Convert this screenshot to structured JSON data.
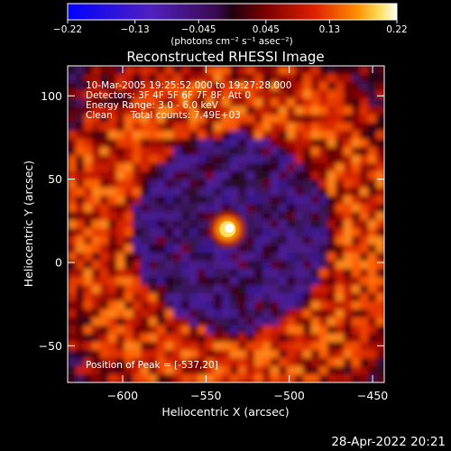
{
  "chart_data": {
    "type": "heatmap",
    "title": "Reconstructed RHESSI Image",
    "xlabel": "Heliocentric X (arcsec)",
    "ylabel": "Heliocentric Y (arcsec)",
    "xlim": [
      -633,
      -443
    ],
    "ylim": [
      -72,
      118
    ],
    "x_ticks": [
      -600,
      -550,
      -500,
      -450
    ],
    "x_tick_labels": [
      "−600",
      "−550",
      "−500",
      "−450"
    ],
    "y_ticks": [
      -50,
      0,
      50,
      100
    ],
    "y_tick_labels": [
      "−50",
      "0",
      "50",
      "100"
    ],
    "colorbar": {
      "range": [
        -0.22,
        0.22
      ],
      "ticks": [
        -0.22,
        -0.13,
        -0.045,
        0.045,
        0.13,
        0.22
      ],
      "tick_labels": [
        "−0.22",
        "−0.13",
        "−0.045",
        "0.045",
        "0.13",
        "0.22"
      ],
      "unit_label": "(photons cm⁻² s⁻¹ asec⁻²)",
      "colormap": "blue-purple-red-yellow-white"
    },
    "peak": {
      "x": -537,
      "y": 20
    },
    "info_lines": [
      "10-Mar-2005 19:25:52.000 to 19:27:28.000",
      "Detectors: 3F 4F 5F 6F 7F 8F, Att 0",
      "Energy Range: 3.0 - 6.0 keV",
      "Clean      Total counts: 7.49E+03"
    ],
    "peak_label": "Position of Peak = [-537,20]",
    "timestamp": "28-Apr-2022 20:21"
  }
}
